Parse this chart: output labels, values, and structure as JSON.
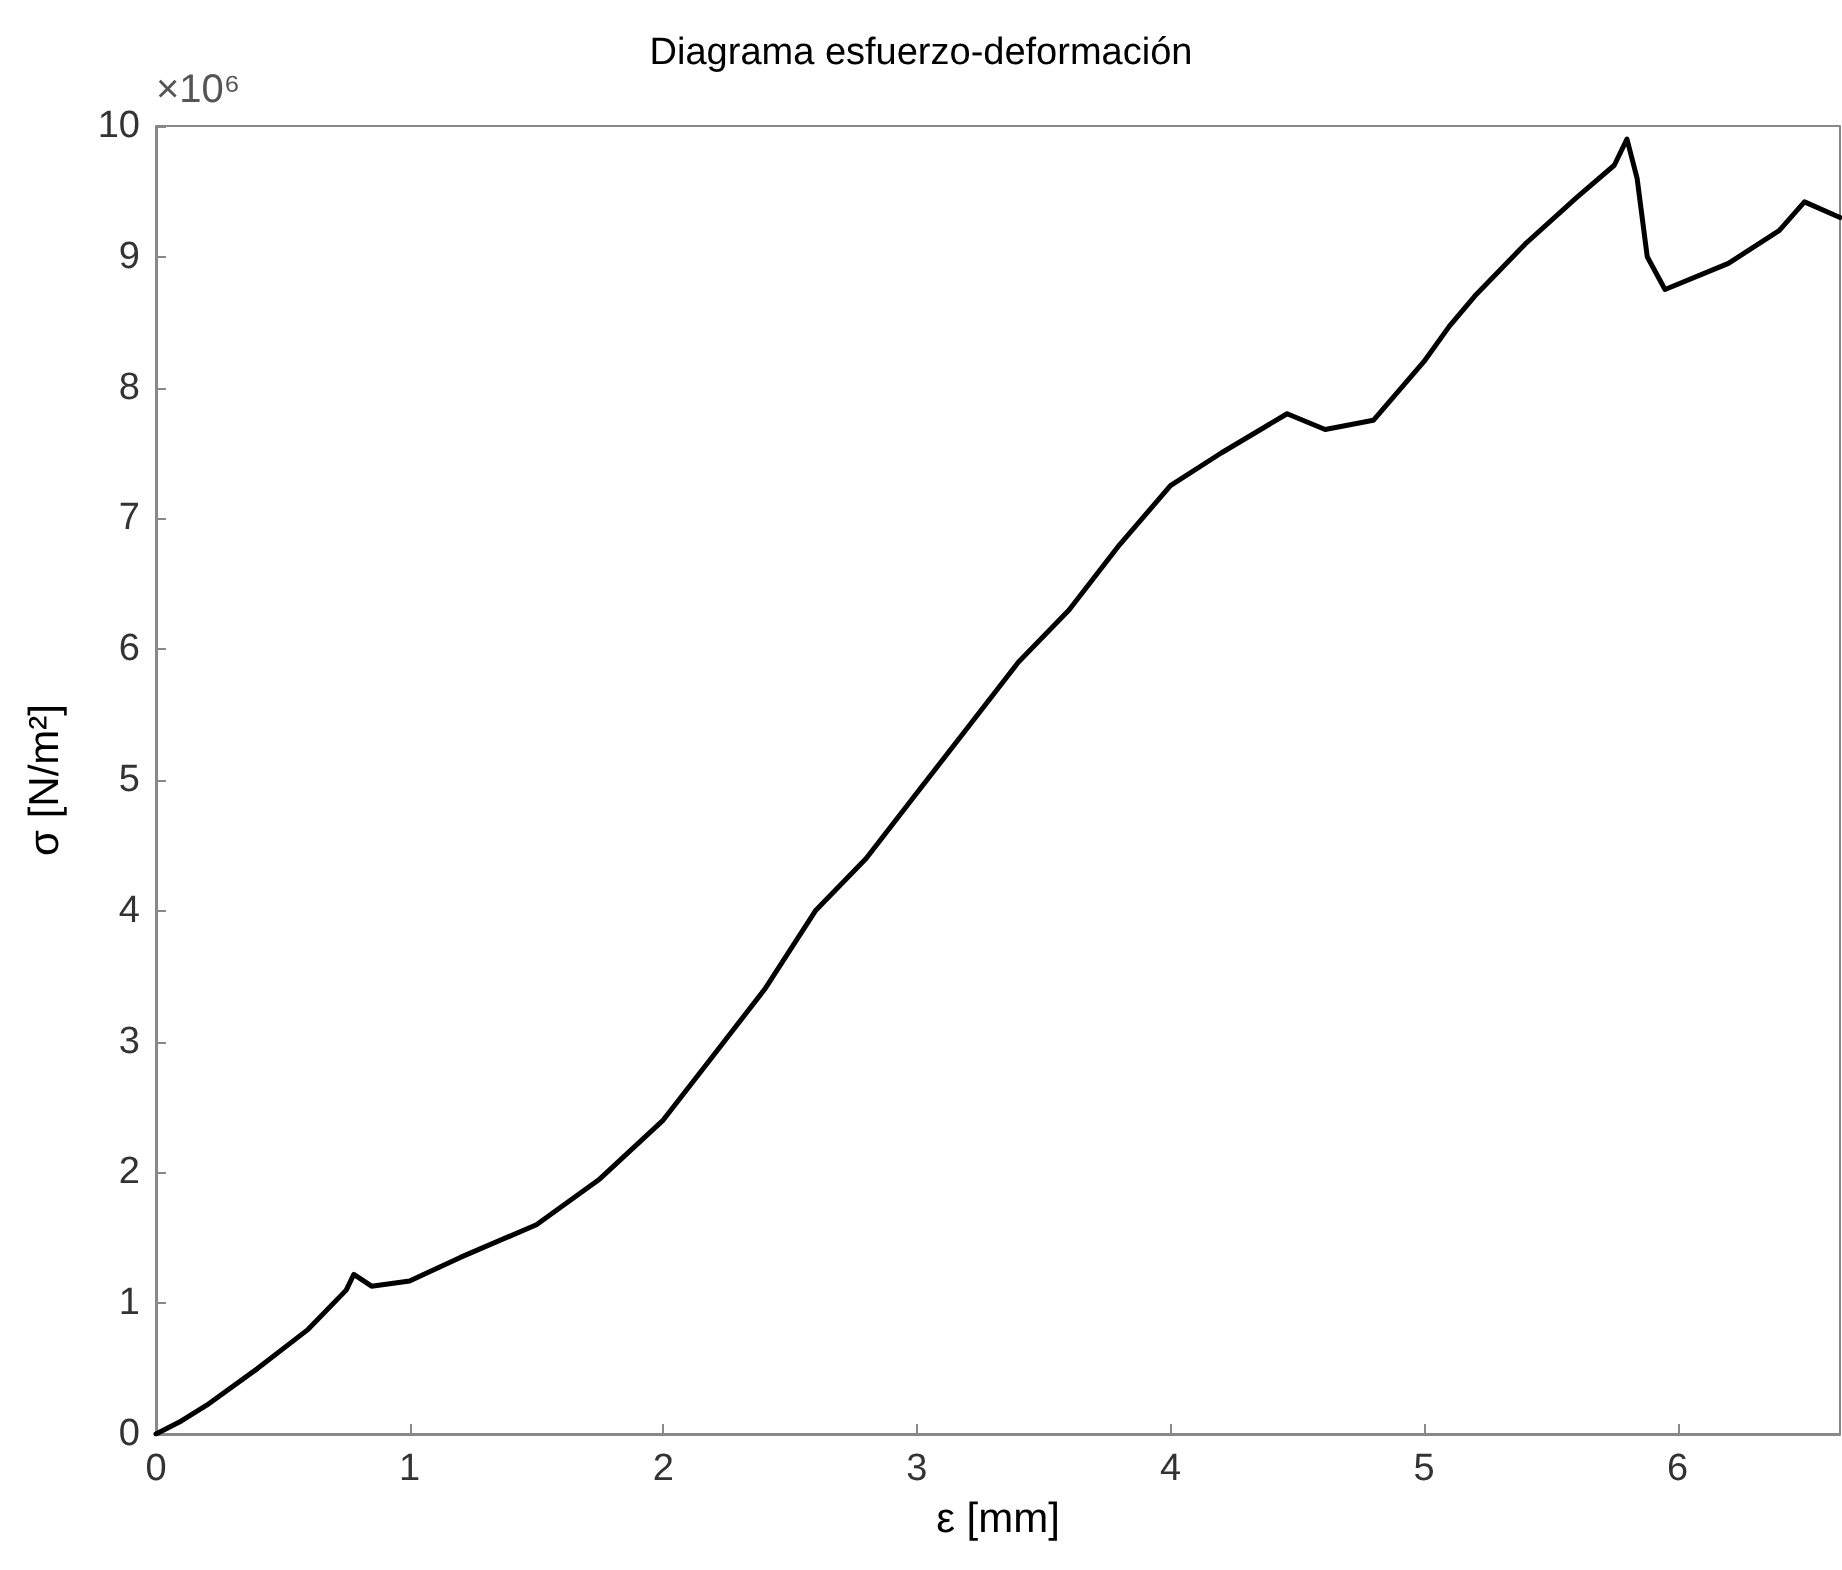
{
  "chart_data": {
    "type": "line",
    "title": "Diagrama esfuerzo-deformación",
    "xlabel": "ε [mm]",
    "ylabel": "σ [N/m²]",
    "annotations": [
      "×10⁶"
    ],
    "xlim": [
      0,
      6.64
    ],
    "xticks": [
      0,
      1,
      2,
      3,
      4,
      5,
      6
    ],
    "ylim": [
      0,
      10
    ],
    "yticks": [
      0,
      1,
      2,
      3,
      4,
      5,
      6,
      7,
      8,
      9,
      10
    ],
    "grid": false,
    "marker": "none",
    "line_style": "solid",
    "x": [
      0,
      0.1,
      0.2,
      0.4,
      0.6,
      0.75,
      0.78,
      0.85,
      1.0,
      1.2,
      1.5,
      1.75,
      2.0,
      2.2,
      2.4,
      2.6,
      2.8,
      3.0,
      3.2,
      3.4,
      3.6,
      3.8,
      4.0,
      4.2,
      4.46,
      4.61,
      4.8,
      5.0,
      5.1,
      5.2,
      5.4,
      5.6,
      5.75,
      5.8,
      5.84,
      5.88,
      5.95,
      6.2,
      6.4,
      6.5,
      6.64
    ],
    "series": [
      {
        "color": "#000000",
        "values": [
          0,
          0.1,
          0.22,
          0.5,
          0.8,
          1.1,
          1.22,
          1.13,
          1.17,
          1.35,
          1.6,
          1.95,
          2.4,
          2.9,
          3.4,
          4.0,
          4.4,
          4.9,
          5.4,
          5.9,
          6.3,
          6.8,
          7.25,
          7.5,
          7.8,
          7.68,
          7.75,
          8.2,
          8.47,
          8.7,
          9.1,
          9.45,
          9.7,
          9.9,
          9.6,
          9.0,
          8.75,
          8.95,
          9.2,
          9.42,
          9.3
        ]
      }
    ]
  }
}
